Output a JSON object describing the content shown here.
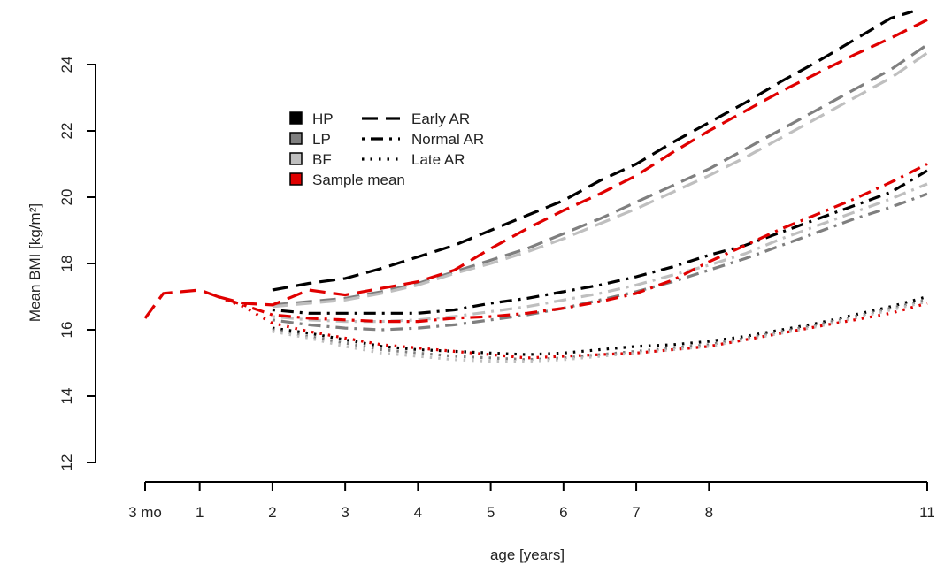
{
  "chart_data": {
    "type": "line",
    "xlabel": "age [years]",
    "ylabel": "Mean BMI [kg/m²]",
    "ylim": [
      11.5,
      25.6
    ],
    "xlim": [
      0.25,
      11
    ],
    "x_ticks": [
      {
        "value": 0.25,
        "label": "3 mo"
      },
      {
        "value": 1,
        "label": "1"
      },
      {
        "value": 2,
        "label": "2"
      },
      {
        "value": 3,
        "label": "3"
      },
      {
        "value": 4,
        "label": "4"
      },
      {
        "value": 5,
        "label": "5"
      },
      {
        "value": 6,
        "label": "6"
      },
      {
        "value": 7,
        "label": "7"
      },
      {
        "value": 8,
        "label": "8"
      },
      {
        "value": 11,
        "label": "11"
      }
    ],
    "y_ticks": [
      {
        "value": 12,
        "label": "12"
      },
      {
        "value": 14,
        "label": "14"
      },
      {
        "value": 16,
        "label": "16"
      },
      {
        "value": 18,
        "label": "18"
      },
      {
        "value": 20,
        "label": "20"
      },
      {
        "value": 22,
        "label": "22"
      },
      {
        "value": 24,
        "label": "24"
      }
    ],
    "grid": false,
    "legend": {
      "placement": "top-left",
      "color_entries": [
        {
          "label": "HP",
          "color": "#000000"
        },
        {
          "label": "LP",
          "color": "#7f7f7f"
        },
        {
          "label": "BF",
          "color": "#bfbfbf"
        },
        {
          "label": "Sample mean",
          "color": "#e00000"
        }
      ],
      "style_entries": [
        {
          "label": "Early AR",
          "dash": "dashed"
        },
        {
          "label": "Normal AR",
          "dash": "dotdash"
        },
        {
          "label": "Late AR",
          "dash": "dotted"
        }
      ]
    },
    "shared_infancy": {
      "x": [
        0.25,
        0.5,
        0.75,
        1,
        1.25
      ],
      "y": [
        16.35,
        17.1,
        17.15,
        17.2,
        17.0
      ]
    },
    "series": [
      {
        "group": "HP",
        "ar": "Early AR",
        "color": "#000000",
        "dash": "dashed",
        "x": [
          2,
          2.5,
          3,
          3.5,
          4,
          4.5,
          5,
          5.5,
          6,
          6.5,
          7,
          7.5,
          8,
          8.5,
          9,
          9.5,
          10,
          10.5,
          10.8
        ],
        "y": [
          17.2,
          17.4,
          17.55,
          17.85,
          18.2,
          18.55,
          19.0,
          19.45,
          19.9,
          20.5,
          21.0,
          21.65,
          22.25,
          22.85,
          23.5,
          24.1,
          24.75,
          25.4,
          25.6
        ]
      },
      {
        "group": "LP",
        "ar": "Early AR",
        "color": "#7f7f7f",
        "dash": "dashed",
        "x": [
          2,
          2.5,
          3,
          3.5,
          4,
          4.5,
          5,
          5.5,
          6,
          6.5,
          7,
          7.5,
          8,
          8.5,
          9,
          9.5,
          10,
          10.5,
          11
        ],
        "y": [
          16.75,
          16.85,
          16.95,
          17.15,
          17.4,
          17.75,
          18.1,
          18.45,
          18.9,
          19.35,
          19.85,
          20.35,
          20.85,
          21.45,
          22.05,
          22.65,
          23.25,
          23.85,
          24.6
        ]
      },
      {
        "group": "BF",
        "ar": "Early AR",
        "color": "#bfbfbf",
        "dash": "dashed",
        "x": [
          2,
          2.5,
          3,
          3.5,
          4,
          4.5,
          5,
          5.5,
          6,
          6.5,
          7,
          7.5,
          8,
          8.5,
          9,
          9.5,
          10,
          10.5,
          11
        ],
        "y": [
          16.7,
          16.8,
          16.9,
          17.1,
          17.35,
          17.7,
          18.0,
          18.35,
          18.75,
          19.2,
          19.65,
          20.15,
          20.65,
          21.2,
          21.8,
          22.4,
          23.0,
          23.6,
          24.35
        ]
      },
      {
        "group": "Sample mean",
        "ar": "Early AR",
        "color": "#e00000",
        "dash": "dashed",
        "x": [
          1.25,
          1.6,
          2,
          2.5,
          3,
          3.5,
          4,
          4.5,
          5,
          5.5,
          6,
          6.5,
          7,
          7.5,
          8,
          8.5,
          9,
          9.5,
          10,
          10.5,
          11
        ],
        "y": [
          17.0,
          16.8,
          16.75,
          17.2,
          17.05,
          17.25,
          17.45,
          17.8,
          18.45,
          19.05,
          19.6,
          20.1,
          20.65,
          21.35,
          22.0,
          22.6,
          23.2,
          23.75,
          24.3,
          24.8,
          25.35
        ]
      },
      {
        "group": "HP",
        "ar": "Normal AR",
        "color": "#000000",
        "dash": "dotdash",
        "x": [
          2,
          2.5,
          3,
          3.5,
          4,
          4.5,
          5,
          5.5,
          6,
          6.5,
          7,
          7.5,
          8,
          8.5,
          9,
          9.5,
          10,
          10.5,
          11
        ],
        "y": [
          16.6,
          16.5,
          16.5,
          16.5,
          16.5,
          16.6,
          16.8,
          16.95,
          17.15,
          17.35,
          17.6,
          17.9,
          18.25,
          18.55,
          18.95,
          19.35,
          19.75,
          20.15,
          20.8
        ]
      },
      {
        "group": "LP",
        "ar": "Normal AR",
        "color": "#7f7f7f",
        "dash": "dotdash",
        "x": [
          2,
          2.5,
          3,
          3.5,
          4,
          4.5,
          5,
          5.5,
          6,
          6.5,
          7,
          7.5,
          8,
          8.5,
          9,
          9.5,
          10,
          10.5,
          11
        ],
        "y": [
          16.3,
          16.15,
          16.05,
          16.0,
          16.05,
          16.15,
          16.3,
          16.45,
          16.65,
          16.9,
          17.15,
          17.45,
          17.8,
          18.15,
          18.55,
          18.95,
          19.35,
          19.7,
          20.1
        ]
      },
      {
        "group": "BF",
        "ar": "Normal AR",
        "color": "#bfbfbf",
        "dash": "dotdash",
        "x": [
          2,
          2.5,
          3,
          3.5,
          4,
          4.5,
          5,
          5.5,
          6,
          6.5,
          7,
          7.5,
          8,
          8.5,
          9,
          9.5,
          10,
          10.5,
          11
        ],
        "y": [
          16.4,
          16.3,
          16.25,
          16.25,
          16.3,
          16.4,
          16.55,
          16.7,
          16.9,
          17.1,
          17.35,
          17.65,
          17.95,
          18.3,
          18.75,
          19.15,
          19.55,
          19.95,
          20.4
        ]
      },
      {
        "group": "Sample mean",
        "ar": "Normal AR",
        "color": "#e00000",
        "dash": "dotdash",
        "x": [
          1.25,
          1.6,
          2,
          2.5,
          3,
          3.5,
          4,
          4.5,
          5,
          5.5,
          6,
          6.5,
          7,
          7.5,
          8,
          8.5,
          9,
          9.5,
          10,
          10.5,
          11
        ],
        "y": [
          17.0,
          16.75,
          16.45,
          16.35,
          16.3,
          16.25,
          16.25,
          16.35,
          16.4,
          16.5,
          16.65,
          16.85,
          17.1,
          17.5,
          18.05,
          18.55,
          19.05,
          19.5,
          19.95,
          20.45,
          21.0
        ]
      },
      {
        "group": "HP",
        "ar": "Late AR",
        "color": "#000000",
        "dash": "dotted",
        "x": [
          2,
          2.5,
          3,
          3.5,
          4,
          4.5,
          5,
          5.5,
          6,
          6.5,
          7,
          7.5,
          8,
          8.5,
          9,
          9.5,
          10,
          10.5,
          11
        ],
        "y": [
          16.05,
          15.9,
          15.7,
          15.5,
          15.4,
          15.35,
          15.3,
          15.25,
          15.3,
          15.4,
          15.5,
          15.55,
          15.65,
          15.8,
          16.0,
          16.2,
          16.45,
          16.7,
          17.0
        ]
      },
      {
        "group": "LP",
        "ar": "Late AR",
        "color": "#7f7f7f",
        "dash": "dotted",
        "x": [
          2,
          2.5,
          3,
          3.5,
          4,
          4.5,
          5,
          5.5,
          6,
          6.5,
          7,
          7.5,
          8,
          8.5,
          9,
          9.5,
          10,
          10.5,
          11
        ],
        "y": [
          16.0,
          15.8,
          15.6,
          15.4,
          15.3,
          15.2,
          15.15,
          15.1,
          15.15,
          15.25,
          15.35,
          15.45,
          15.55,
          15.75,
          15.95,
          16.15,
          16.4,
          16.65,
          16.9
        ]
      },
      {
        "group": "BF",
        "ar": "Late AR",
        "color": "#bfbfbf",
        "dash": "dotted",
        "x": [
          2,
          2.5,
          3,
          3.5,
          4,
          4.5,
          5,
          5.5,
          6,
          6.5,
          7,
          7.5,
          8,
          8.5,
          9,
          9.5,
          10,
          10.5,
          11
        ],
        "y": [
          15.95,
          15.75,
          15.5,
          15.3,
          15.2,
          15.1,
          15.05,
          15.05,
          15.1,
          15.2,
          15.3,
          15.4,
          15.5,
          15.7,
          15.9,
          16.1,
          16.35,
          16.6,
          16.85
        ]
      },
      {
        "group": "Sample mean",
        "ar": "Late AR",
        "color": "#e00000",
        "dash": "dotted",
        "x": [
          1.25,
          1.6,
          2,
          2.5,
          3,
          3.5,
          4,
          4.5,
          5,
          5.5,
          6,
          6.5,
          7,
          7.5,
          8,
          8.5,
          9,
          9.5,
          10,
          10.5,
          11
        ],
        "y": [
          17.0,
          16.7,
          16.2,
          15.95,
          15.75,
          15.55,
          15.45,
          15.35,
          15.25,
          15.15,
          15.2,
          15.25,
          15.3,
          15.4,
          15.5,
          15.7,
          15.9,
          16.1,
          16.3,
          16.5,
          16.8
        ]
      }
    ]
  }
}
